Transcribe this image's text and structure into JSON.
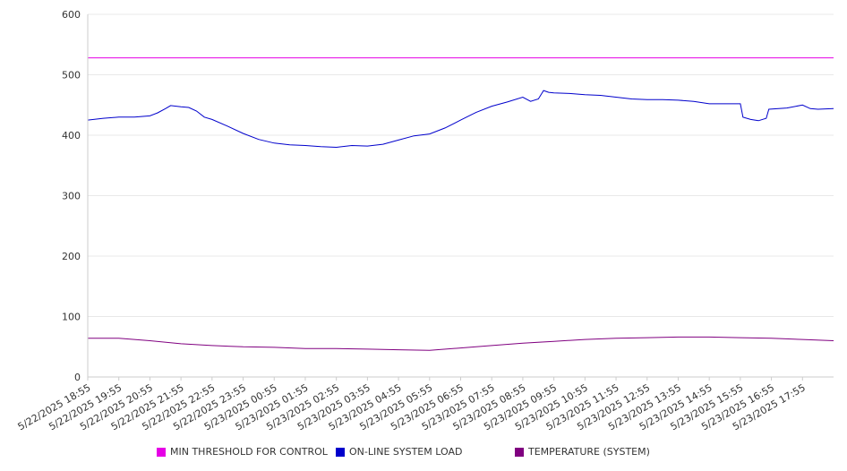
{
  "chart_data": {
    "type": "line",
    "ylim": [
      0,
      600
    ],
    "yticks": [
      "0",
      "100",
      "200",
      "300",
      "400",
      "500",
      "600"
    ],
    "x_tick_labels": [
      "5/22/2025 18:55",
      "5/22/2025 19:55",
      "5/22/2025 20:55",
      "5/22/2025 21:55",
      "5/22/2025 22:55",
      "5/22/2025 23:55",
      "5/23/2025 00:55",
      "5/23/2025 01:55",
      "5/23/2025 02:55",
      "5/23/2025 03:55",
      "5/23/2025 04:55",
      "5/23/2025 05:55",
      "5/23/2025 06:55",
      "5/23/2025 07:55",
      "5/23/2025 08:55",
      "5/23/2025 09:55",
      "5/23/2025 10:55",
      "5/23/2025 11:55",
      "5/23/2025 12:55",
      "5/23/2025 13:55",
      "5/23/2025 14:55",
      "5/23/2025 15:55",
      "5/23/2025 16:55",
      "5/23/2025 17:55"
    ],
    "x_start": "5/22/2025 18:55",
    "x_end": "5/23/2025 18:55",
    "grid": true,
    "legend_position": "bottom",
    "series": [
      {
        "name": "MIN THRESHOLD FOR CONTROL",
        "color": "#e600e6",
        "points": [
          [
            "5/22/2025 18:55",
            528
          ],
          [
            "5/23/2025 18:55",
            528
          ]
        ]
      },
      {
        "name": "ON-LINE SYSTEM LOAD",
        "color": "#0000cc",
        "points": [
          [
            "5/22/2025 18:55",
            425
          ],
          [
            "5/22/2025 19:25",
            428
          ],
          [
            "5/22/2025 19:55",
            430
          ],
          [
            "5/22/2025 20:25",
            430
          ],
          [
            "5/22/2025 20:55",
            432
          ],
          [
            "5/22/2025 21:10",
            437
          ],
          [
            "5/22/2025 21:25",
            444
          ],
          [
            "5/22/2025 21:35",
            449
          ],
          [
            "5/22/2025 21:55",
            447
          ],
          [
            "5/22/2025 22:10",
            446
          ],
          [
            "5/22/2025 22:25",
            440
          ],
          [
            "5/22/2025 22:40",
            430
          ],
          [
            "5/22/2025 22:55",
            426
          ],
          [
            "5/22/2025 23:25",
            415
          ],
          [
            "5/22/2025 23:55",
            403
          ],
          [
            "5/23/2025 00:25",
            393
          ],
          [
            "5/23/2025 00:55",
            387
          ],
          [
            "5/23/2025 01:25",
            384
          ],
          [
            "5/23/2025 01:55",
            383
          ],
          [
            "5/23/2025 02:25",
            381
          ],
          [
            "5/23/2025 02:55",
            380
          ],
          [
            "5/23/2025 03:25",
            383
          ],
          [
            "5/23/2025 03:55",
            382
          ],
          [
            "5/23/2025 04:25",
            385
          ],
          [
            "5/23/2025 04:55",
            392
          ],
          [
            "5/23/2025 05:25",
            399
          ],
          [
            "5/23/2025 05:55",
            402
          ],
          [
            "5/23/2025 06:25",
            412
          ],
          [
            "5/23/2025 06:55",
            425
          ],
          [
            "5/23/2025 07:25",
            438
          ],
          [
            "5/23/2025 07:55",
            448
          ],
          [
            "5/23/2025 08:25",
            455
          ],
          [
            "5/23/2025 08:55",
            463
          ],
          [
            "5/23/2025 09:10",
            456
          ],
          [
            "5/23/2025 09:25",
            460
          ],
          [
            "5/23/2025 09:35",
            474
          ],
          [
            "5/23/2025 09:45",
            471
          ],
          [
            "5/23/2025 09:55",
            470
          ],
          [
            "5/23/2025 10:25",
            469
          ],
          [
            "5/23/2025 10:55",
            467
          ],
          [
            "5/23/2025 11:25",
            466
          ],
          [
            "5/23/2025 11:55",
            463
          ],
          [
            "5/23/2025 12:25",
            460
          ],
          [
            "5/23/2025 12:55",
            459
          ],
          [
            "5/23/2025 13:25",
            459
          ],
          [
            "5/23/2025 13:55",
            458
          ],
          [
            "5/23/2025 14:25",
            456
          ],
          [
            "5/23/2025 14:55",
            452
          ],
          [
            "5/23/2025 15:25",
            452
          ],
          [
            "5/23/2025 15:55",
            452
          ],
          [
            "5/23/2025 16:00",
            430
          ],
          [
            "5/23/2025 16:15",
            426
          ],
          [
            "5/23/2025 16:30",
            424
          ],
          [
            "5/23/2025 16:45",
            428
          ],
          [
            "5/23/2025 16:50",
            443
          ],
          [
            "5/23/2025 17:25",
            445
          ],
          [
            "5/23/2025 17:55",
            450
          ],
          [
            "5/23/2025 18:10",
            444
          ],
          [
            "5/23/2025 18:25",
            443
          ],
          [
            "5/23/2025 18:55",
            444
          ]
        ]
      },
      {
        "name": "TEMPERATURE (SYSTEM)",
        "color": "#800080",
        "points": [
          [
            "5/22/2025 18:55",
            64
          ],
          [
            "5/22/2025 19:55",
            64
          ],
          [
            "5/22/2025 20:55",
            60
          ],
          [
            "5/22/2025 21:55",
            55
          ],
          [
            "5/22/2025 22:55",
            52
          ],
          [
            "5/22/2025 23:55",
            50
          ],
          [
            "5/23/2025 00:55",
            49
          ],
          [
            "5/23/2025 01:55",
            47
          ],
          [
            "5/23/2025 02:55",
            47
          ],
          [
            "5/23/2025 03:55",
            46
          ],
          [
            "5/23/2025 04:55",
            45
          ],
          [
            "5/23/2025 05:55",
            44
          ],
          [
            "5/23/2025 06:55",
            48
          ],
          [
            "5/23/2025 07:55",
            52
          ],
          [
            "5/23/2025 08:55",
            56
          ],
          [
            "5/23/2025 09:55",
            59
          ],
          [
            "5/23/2025 10:55",
            62
          ],
          [
            "5/23/2025 11:55",
            64
          ],
          [
            "5/23/2025 12:55",
            65
          ],
          [
            "5/23/2025 13:55",
            66
          ],
          [
            "5/23/2025 14:55",
            66
          ],
          [
            "5/23/2025 15:55",
            65
          ],
          [
            "5/23/2025 16:55",
            64
          ],
          [
            "5/23/2025 17:55",
            62
          ],
          [
            "5/23/2025 18:55",
            60
          ]
        ]
      }
    ]
  }
}
